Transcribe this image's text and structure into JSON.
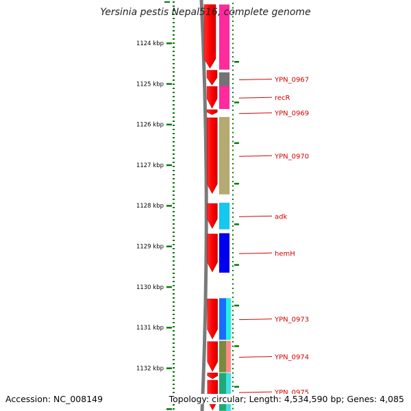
{
  "title": "Yersinia pestis Nepal516, complete genome",
  "footer": {
    "accession": "Accession: NC_008149",
    "summary": "Topology: circular; Length: 4,534,590 bp; Genes: 4,085"
  },
  "ruler": {
    "unit": "kbp",
    "ticks": [
      {
        "value": 1124,
        "label": "1124 kbp"
      },
      {
        "value": 1125,
        "label": "1125 kbp"
      },
      {
        "value": 1126,
        "label": "1126 kbp"
      },
      {
        "value": 1127,
        "label": "1127 kbp"
      },
      {
        "value": 1128,
        "label": "1128 kbp"
      },
      {
        "value": 1129,
        "label": "1129 kbp"
      },
      {
        "value": 1130,
        "label": "1130 kbp"
      },
      {
        "value": 1131,
        "label": "1131 kbp"
      },
      {
        "value": 1132,
        "label": "1132 kbp"
      }
    ]
  },
  "colors": {
    "backbone": "#808080",
    "forward_cds": "#ff0000",
    "tick_green": "#007700",
    "label_red": "#d40000"
  },
  "genes": [
    {
      "label": "",
      "start": 1123.05,
      "end": 1124.65,
      "color": "#ff2a9c"
    },
    {
      "label": "YPN_0967",
      "start": 1124.72,
      "end": 1125.05,
      "color": "#737373"
    },
    {
      "label": "recR",
      "start": 1125.05,
      "end": 1125.62,
      "color": "#ff2a9c"
    },
    {
      "label": "YPN_0969",
      "start": 1125.65,
      "end": 1125.78,
      "color": "#ffffff"
    },
    {
      "label": "YPN_0970",
      "start": 1125.82,
      "end": 1127.72,
      "color": "#b5ab72"
    },
    {
      "label": "adk",
      "start": 1127.93,
      "end": 1128.58,
      "color": "#14c8f0"
    },
    {
      "label": "hemH",
      "start": 1128.68,
      "end": 1129.65,
      "color": "#0000ee"
    },
    {
      "label": "YPN_0973",
      "start": 1130.28,
      "end": 1131.3,
      "color": "#1a6cff"
    },
    {
      "label": "YPN_0974",
      "start": 1131.33,
      "end": 1132.1,
      "color": "#7a8a3c"
    },
    {
      "label": "YPN_0975",
      "start": 1132.12,
      "end": 1133.05,
      "color": "#20a878"
    }
  ]
}
